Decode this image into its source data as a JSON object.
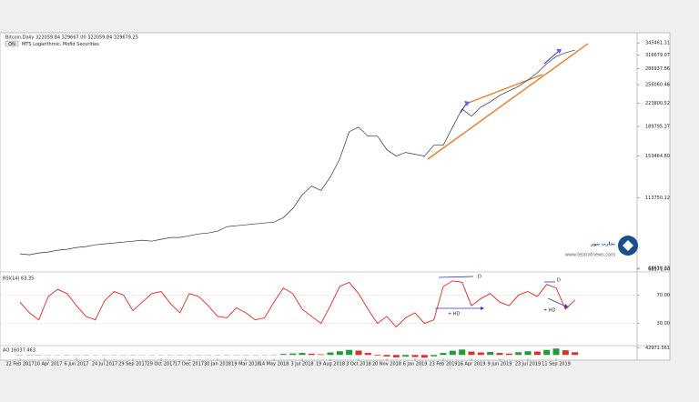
{
  "chart_data": [
    {
      "type": "line",
      "title": "Bitcoin,Daily 322059.84 329667.00 322059.84 329679.25",
      "subtitle": "MTS Logarithmic, Mofid Securities",
      "button": "ON",
      "log_scale": true,
      "color": "#333333",
      "ylim": [
        67700,
        362000
      ],
      "yticks": [
        345461.31,
        316679.07,
        286937.86,
        256060.46,
        223800.52,
        189795.37,
        {
          "value": 153464.8,
          "label": "153464.80"
        },
        113750.12,
        68610.33,
        {
          "value": 68171,
          "label": "68171.00"
        }
      ],
      "values": [
        76070,
        75590,
        76590,
        77080,
        78110,
        78590,
        79630,
        80150,
        81180,
        81740,
        82250,
        82770,
        83330,
        83880,
        83330,
        84430,
        85540,
        85540,
        86640,
        87780,
        88330,
        89510,
        92450,
        93070,
        93660,
        94280,
        94900,
        95520,
        98670,
        105300,
        116040,
        123810,
        119910,
        132140,
        150480,
        182850,
        188830,
        176980,
        176980,
        160600,
        153380,
        157430,
        155390,
        153380,
        165820,
        165820,
        188830,
        215050,
        204170,
        217880,
        226520,
        236990,
        244900,
        252950,
        264770,
        278890,
        297650,
        313400,
        321660,
        327980
      ]
    },
    {
      "type": "line",
      "title": "RSI(14) 63.35",
      "color": "#e8231f",
      "ylim": [
        0,
        100
      ],
      "yticks": [
        {
          "value": 70,
          "label": "70.00"
        },
        {
          "value": 30,
          "label": "30.00"
        }
      ],
      "annotations": [
        "D",
        "+ HD",
        "D",
        "+ HD"
      ],
      "values": [
        60,
        45,
        35,
        68,
        78,
        72,
        55,
        40,
        35,
        62,
        75,
        70,
        48,
        60,
        72,
        75,
        58,
        45,
        72,
        68,
        55,
        40,
        38,
        52,
        45,
        35,
        38,
        60,
        80,
        72,
        50,
        40,
        30,
        55,
        82,
        88,
        72,
        50,
        30,
        40,
        25,
        38,
        45,
        30,
        35,
        82,
        90,
        88,
        55,
        65,
        72,
        60,
        55,
        70,
        75,
        68,
        85,
        80,
        50,
        63
      ]
    },
    {
      "type": "bar",
      "title": "AO 16037.463",
      "up_color": "#1f9d3a",
      "down_color": "#d9322a",
      "ylim": [
        -20000,
        50000
      ],
      "yticks": [
        {
          "value": 42971.561,
          "label": "42971.561"
        }
      ],
      "categories": [
        "22 Feb 2017",
        null,
        null,
        "10 Apr 2017",
        null,
        null,
        "6 Jun 2017",
        null,
        null,
        "24 Jul 2017",
        null,
        null,
        "29 Sep 2017",
        null,
        null,
        "29 Oct 2017",
        null,
        null,
        "17 Dec 2017",
        null,
        null,
        "30 Jan 2018",
        null,
        null,
        "19 Mar 2018",
        null,
        null,
        "14 May 2018",
        null,
        null,
        "3 Jul 2018",
        null,
        null,
        "19 Aug 2018",
        null,
        null,
        "3 Oct 2018",
        null,
        null,
        "20 Nov 2018",
        null,
        null,
        "6 Jan 2019",
        null,
        null,
        "23 Feb 2019",
        null,
        null,
        "16 Apr 2019",
        null,
        null,
        "9 Jun 2019",
        null,
        null,
        "23 Jul 2019",
        null,
        null,
        "11 Sep 2019",
        null,
        null
      ],
      "values": [
        500,
        -800,
        -1200,
        900,
        1500,
        800,
        -300,
        -900,
        -600,
        700,
        1200,
        900,
        -400,
        300,
        1100,
        1400,
        600,
        -500,
        1300,
        1000,
        400,
        -600,
        -900,
        200,
        -300,
        -800,
        -500,
        2000,
        6000,
        9000,
        12000,
        8000,
        4000,
        15000,
        22000,
        30000,
        26000,
        12000,
        -4000,
        -9000,
        -14000,
        -10000,
        -12000,
        -16000,
        -8000,
        12000,
        25000,
        32000,
        20000,
        15000,
        18000,
        12000,
        8000,
        16000,
        22000,
        20000,
        30000,
        38000,
        28000,
        16037
      ]
    }
  ],
  "watermark": {
    "title": "تجارت نیوز",
    "url": "www.tejaratnews.com"
  }
}
